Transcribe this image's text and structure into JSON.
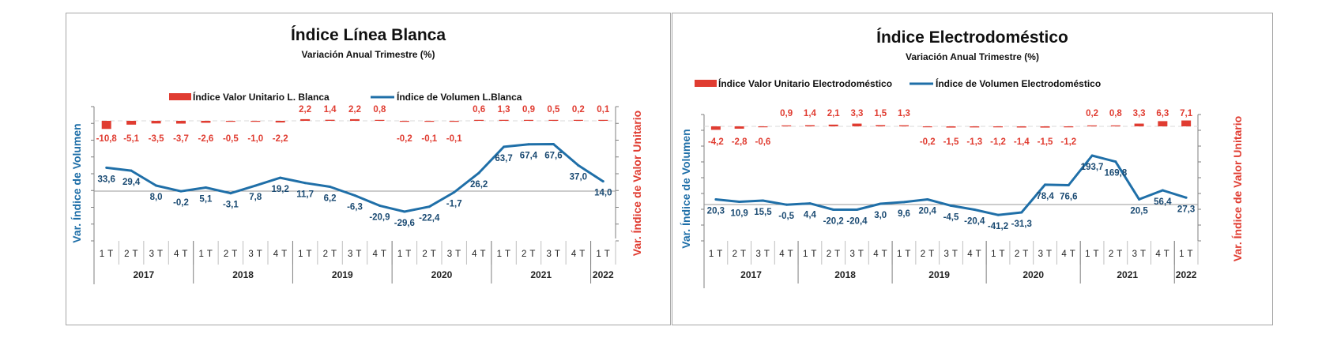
{
  "chart_data": [
    {
      "type": "bar+line",
      "title": "Índice Línea Blanca",
      "subtitle": "Variación Anual Trimestre  (%)",
      "ylabel_left": "Var. Índice de Volumen",
      "ylabel_right": "Var. Índice de Valor Unitario",
      "legend_position": "top",
      "grid": false,
      "quarters": [
        "1 T",
        "2 T",
        "3 T",
        "4 T",
        "1 T",
        "2 T",
        "3 T",
        "4 T",
        "1 T",
        "2 T",
        "3 T",
        "4 T",
        "1 T",
        "2 T",
        "3 T",
        "4 T",
        "1 T",
        "2 T",
        "3 T",
        "4 T",
        "1 T"
      ],
      "years": [
        {
          "label": "2017",
          "span": 4
        },
        {
          "label": "2018",
          "span": 4
        },
        {
          "label": "2019",
          "span": 4
        },
        {
          "label": "2020",
          "span": 4
        },
        {
          "label": "2021",
          "span": 4
        },
        {
          "label": "2022",
          "span": 1
        }
      ],
      "series": [
        {
          "name": "Índice Valor Unitario L. Blanca",
          "kind": "bar",
          "axis": "right",
          "color": "#e03c31",
          "values": [
            -10.8,
            -5.1,
            -3.5,
            -3.7,
            -2.6,
            -0.5,
            -1.0,
            -2.2,
            2.2,
            1.4,
            2.2,
            0.8,
            -0.2,
            -0.1,
            -0.1,
            0.6,
            1.3,
            0.9,
            0.5,
            0.2,
            0.1
          ],
          "labels": [
            "-10,8",
            "-5,1",
            "-3,5",
            "-3,7",
            "-2,6",
            "-0,5",
            "-1,0",
            "-2,2",
            "2,2",
            "1,4",
            "2,2",
            "0,8",
            "-0,2",
            "-0,1",
            "-0,1",
            "0,6",
            "1,3",
            "0,9",
            "0,5",
            "0,2",
            "0,1"
          ]
        },
        {
          "name": "Índice de Volumen L.Blanca",
          "kind": "line",
          "axis": "left",
          "color": "#1f6fa8",
          "values": [
            33.6,
            29.4,
            8.0,
            -0.2,
            5.1,
            -3.1,
            7.8,
            19.2,
            11.7,
            6.2,
            -6.3,
            -20.9,
            -29.6,
            -22.4,
            -1.7,
            26.2,
            63.7,
            67.4,
            67.6,
            37.0,
            14.0
          ],
          "labels": [
            "33,6",
            "29,4",
            "8,0",
            "-0,2",
            "5,1",
            "-3,1",
            "7,8",
            "19,2",
            "11,7",
            "6,2",
            "-6,3",
            "-20,9",
            "-29,6",
            "-22,4",
            "-1,7",
            "26,2",
            "63,7",
            "67,4",
            "67,6",
            "37,0",
            "14,0"
          ]
        }
      ]
    },
    {
      "type": "bar+line",
      "title": "Índice Electrodoméstico",
      "subtitle": "Variación Anual Trimestre  (%)",
      "ylabel_left": "Var. Índice de Volumen",
      "ylabel_right": "Var. Índice de Valor Unitario",
      "legend_position": "top",
      "grid": false,
      "quarters": [
        "1 T",
        "2 T",
        "3 T",
        "4 T",
        "1 T",
        "2 T",
        "3 T",
        "4 T",
        "1 T",
        "2 T",
        "3 T",
        "4 T",
        "1 T",
        "2 T",
        "3 T",
        "4 T",
        "1 T",
        "2 T",
        "3 T",
        "4 T",
        "1 T"
      ],
      "years": [
        {
          "label": "2017",
          "span": 4
        },
        {
          "label": "2018",
          "span": 4
        },
        {
          "label": "2019",
          "span": 4
        },
        {
          "label": "2020",
          "span": 4
        },
        {
          "label": "2021",
          "span": 4
        },
        {
          "label": "2022",
          "span": 1
        }
      ],
      "series": [
        {
          "name": "Índice Valor Unitario Electrodoméstico",
          "kind": "bar",
          "axis": "right",
          "color": "#e03c31",
          "values": [
            -4.2,
            -2.8,
            -0.6,
            0.9,
            1.4,
            2.1,
            3.3,
            1.5,
            1.3,
            -0.2,
            -1.5,
            -1.3,
            -1.2,
            -1.4,
            -1.5,
            -1.2,
            0.2,
            0.8,
            3.3,
            6.3,
            7.1
          ],
          "labels": [
            "-4,2",
            "-2,8",
            "-0,6",
            "0,9",
            "1,4",
            "2,1",
            "3,3",
            "1,5",
            "1,3",
            "-0,2",
            "-1,5",
            "-1,3",
            "-1,2",
            "-1,4",
            "-1,5",
            "-1,2",
            "0,2",
            "0,8",
            "3,3",
            "6,3",
            "7,1"
          ]
        },
        {
          "name": "Índice de Volumen Electrodoméstico",
          "kind": "line",
          "axis": "left",
          "color": "#1f6fa8",
          "values": [
            20.3,
            10.9,
            15.5,
            -0.5,
            4.4,
            -20.2,
            -20.4,
            3.0,
            9.6,
            20.4,
            -4.5,
            -20.4,
            -41.2,
            -31.3,
            78.4,
            76.6,
            193.7,
            169.8,
            20.5,
            56.4,
            27.3
          ],
          "labels": [
            "20,3",
            "10,9",
            "15,5",
            "-0,5",
            "4,4",
            "-20,2",
            "-20,4",
            "3,0",
            "9,6",
            "20,4",
            "-4,5",
            "-20,4",
            "-41,2",
            "-31,3",
            "78,4",
            "76,6",
            "193,7",
            "169,8",
            "20,5",
            "56,4",
            "27,3"
          ]
        }
      ]
    }
  ]
}
